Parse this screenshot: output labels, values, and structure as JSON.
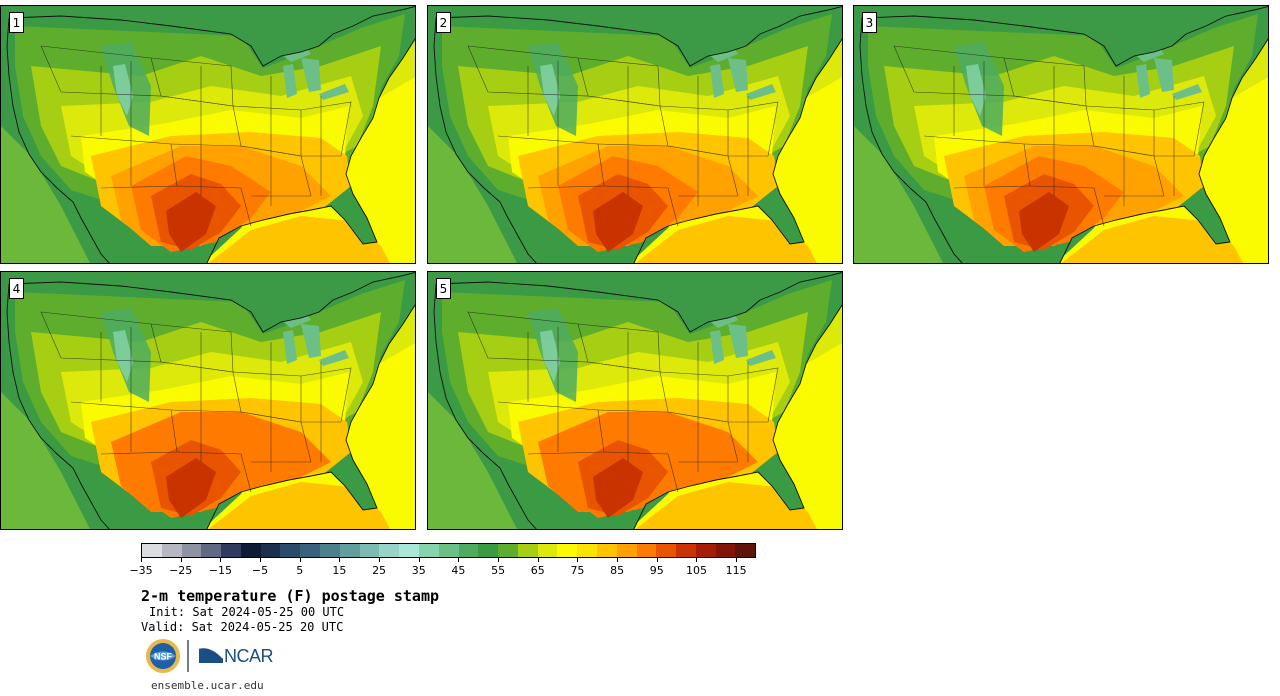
{
  "panels": [
    {
      "label": "1",
      "heat": 1.0
    },
    {
      "label": "2",
      "heat": 0.9
    },
    {
      "label": "3",
      "heat": 0.95
    },
    {
      "label": "4",
      "heat": 0.85
    },
    {
      "label": "5",
      "heat": 0.8
    }
  ],
  "colorbar": {
    "colors": [
      "#dcdde2",
      "#b5b8c3",
      "#8d93a4",
      "#5f6984",
      "#2f3b5c",
      "#0f1b35",
      "#1c2f4f",
      "#2c4a69",
      "#3a617a",
      "#4d7f8d",
      "#649d9e",
      "#7cbab3",
      "#97d4c7",
      "#a8e8d8",
      "#86d4ad",
      "#6dbf88",
      "#4eab60",
      "#3b9a44",
      "#5fad2c",
      "#a6cf13",
      "#dde90a",
      "#fbfb00",
      "#fde400",
      "#ffc400",
      "#ffa200",
      "#ff7b00",
      "#e85400",
      "#c83300",
      "#a41d06",
      "#821508",
      "#601309"
    ],
    "tick_labels": [
      "−35",
      "−25",
      "−15",
      "−5",
      "5",
      "15",
      "25",
      "35",
      "45",
      "55",
      "65",
      "75",
      "85",
      "95",
      "105",
      "115"
    ],
    "min": -35,
    "max": 120
  },
  "title": "2-m temperature (F) postage stamp",
  "init": "Init: Sat 2024-05-25 00 UTC",
  "valid": "Valid: Sat 2024-05-25 20 UTC",
  "logos": {
    "nsf": "NSF",
    "ncar": "NCAR"
  },
  "site": "ensemble.ucar.edu"
}
